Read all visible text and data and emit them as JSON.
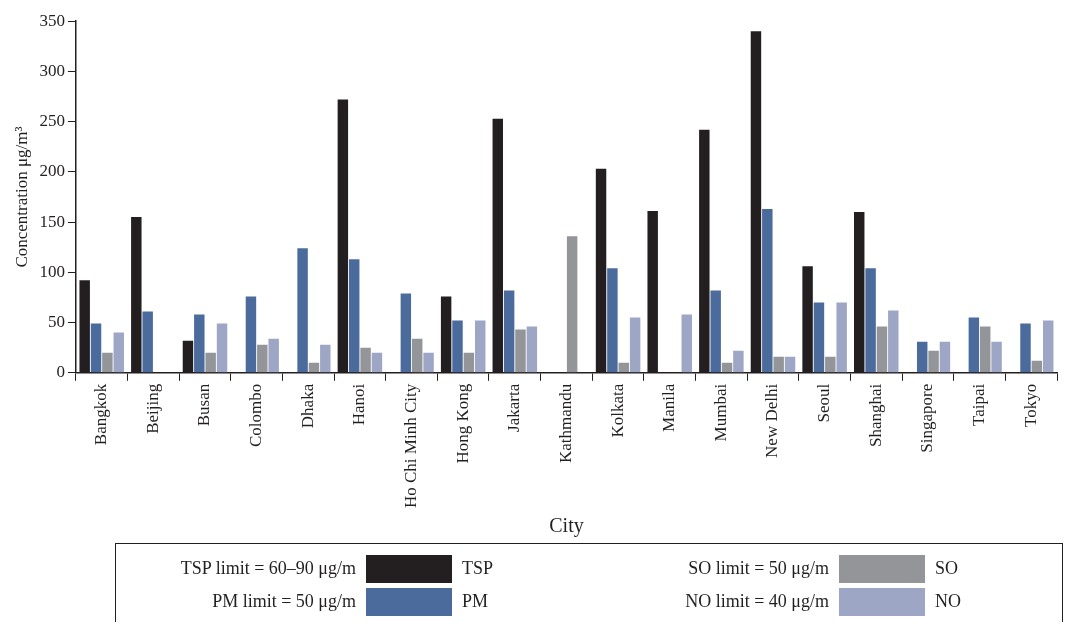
{
  "chart_data": {
    "type": "bar",
    "categories": [
      "Bangkok",
      "Beijing",
      "Busan",
      "Colombo",
      "Dhaka",
      "Hanoi",
      "Ho Chi Minh City",
      "Hong Kong",
      "Jakarta",
      "Kathmandu",
      "Kolkata",
      "Manila",
      "Mumbai",
      "New Delhi",
      "Seoul",
      "Shanghai",
      "Singapore",
      "Taipai",
      "Tokyo"
    ],
    "series": [
      {
        "name": "TSP",
        "color": "#231f20",
        "values": [
          92,
          155,
          32,
          null,
          null,
          272,
          null,
          76,
          253,
          null,
          203,
          161,
          242,
          340,
          106,
          160,
          null,
          null,
          null
        ]
      },
      {
        "name": "PM",
        "color": "#4a6b9b",
        "values": [
          49,
          61,
          58,
          76,
          124,
          113,
          79,
          52,
          82,
          null,
          104,
          null,
          82,
          163,
          70,
          104,
          31,
          55,
          49
        ]
      },
      {
        "name": "SO",
        "color": "#939598",
        "values": [
          20,
          null,
          20,
          28,
          10,
          25,
          34,
          20,
          43,
          136,
          10,
          null,
          10,
          16,
          16,
          46,
          22,
          46,
          12
        ]
      },
      {
        "name": "NO",
        "color": "#9ea6c6",
        "values": [
          40,
          null,
          49,
          34,
          28,
          20,
          20,
          52,
          46,
          null,
          55,
          58,
          22,
          16,
          70,
          62,
          31,
          31,
          52
        ]
      }
    ],
    "xlabel": "City",
    "ylabel": "Concentration μg/m³",
    "ylim": [
      0,
      350
    ],
    "yticks": [
      0,
      50,
      100,
      150,
      200,
      250,
      300,
      350
    ],
    "grid": false,
    "legend": "bottom",
    "annotations": [
      "TSP limit = 60–90 μg/m",
      "PM limit = 50 μg/m",
      "SO limit = 50 μg/m",
      "NO limit = 40 μg/m"
    ]
  }
}
